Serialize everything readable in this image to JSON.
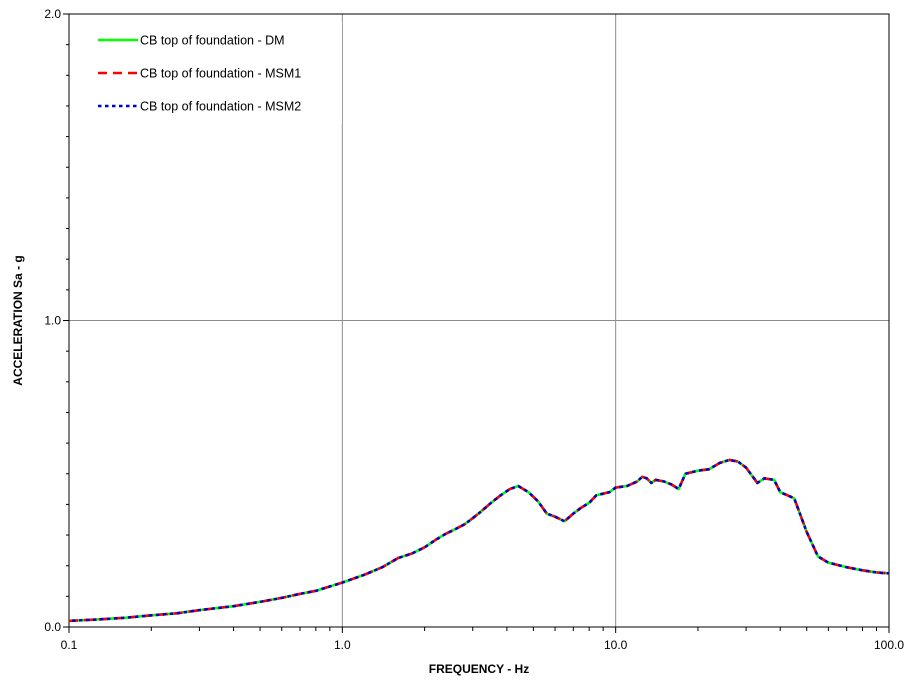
{
  "chart_data": {
    "type": "line",
    "title": "",
    "xlabel": "FREQUENCY - Hz",
    "ylabel": "ACCELERATION Sa - g",
    "xscale": "log",
    "xlim": [
      0.1,
      100.0
    ],
    "ylim": [
      0.0,
      2.0
    ],
    "xticks": [
      "0.1",
      "1.0",
      "10.0",
      "100.0"
    ],
    "yticks": [
      "0.0",
      "1.0",
      "2.0"
    ],
    "grid": true,
    "legend_position": "top-left",
    "series": [
      {
        "name": "CB top of foundation - DM",
        "color": "#00ff00",
        "style": "solid",
        "x": [
          0.1,
          0.13,
          0.16,
          0.2,
          0.25,
          0.3,
          0.4,
          0.5,
          0.6,
          0.7,
          0.8,
          1.0,
          1.2,
          1.4,
          1.6,
          1.8,
          2.0,
          2.2,
          2.4,
          2.6,
          2.8,
          3.0,
          3.2,
          3.5,
          3.8,
          4.1,
          4.4,
          4.8,
          5.2,
          5.6,
          6.0,
          6.5,
          7.0,
          7.5,
          8.0,
          8.5,
          9.0,
          9.5,
          10.0,
          11.0,
          12.0,
          12.5,
          13.0,
          13.5,
          14.0,
          15.0,
          16.0,
          17.0,
          18.0,
          20.0,
          22.0,
          24.0,
          26.0,
          28.0,
          30.0,
          33.0,
          35.0,
          38.0,
          40.0,
          45.0,
          50.0,
          55.0,
          60.0,
          70.0,
          80.0,
          90.0,
          100.0
        ],
        "y": [
          0.02,
          0.025,
          0.03,
          0.038,
          0.045,
          0.055,
          0.068,
          0.082,
          0.095,
          0.108,
          0.118,
          0.145,
          0.17,
          0.195,
          0.225,
          0.24,
          0.26,
          0.285,
          0.305,
          0.32,
          0.335,
          0.355,
          0.375,
          0.405,
          0.43,
          0.45,
          0.46,
          0.44,
          0.41,
          0.37,
          0.36,
          0.345,
          0.37,
          0.39,
          0.405,
          0.43,
          0.435,
          0.44,
          0.455,
          0.46,
          0.475,
          0.49,
          0.485,
          0.47,
          0.48,
          0.475,
          0.465,
          0.45,
          0.5,
          0.51,
          0.515,
          0.535,
          0.545,
          0.54,
          0.52,
          0.47,
          0.485,
          0.48,
          0.44,
          0.42,
          0.31,
          0.23,
          0.21,
          0.195,
          0.185,
          0.178,
          0.175
        ]
      },
      {
        "name": "CB top of foundation - MSM1",
        "color": "#ff0000",
        "style": "dashed",
        "x": [
          0.1,
          0.13,
          0.16,
          0.2,
          0.25,
          0.3,
          0.4,
          0.5,
          0.6,
          0.7,
          0.8,
          1.0,
          1.2,
          1.4,
          1.6,
          1.8,
          2.0,
          2.2,
          2.4,
          2.6,
          2.8,
          3.0,
          3.2,
          3.5,
          3.8,
          4.1,
          4.4,
          4.8,
          5.2,
          5.6,
          6.0,
          6.5,
          7.0,
          7.5,
          8.0,
          8.5,
          9.0,
          9.5,
          10.0,
          11.0,
          12.0,
          12.5,
          13.0,
          13.5,
          14.0,
          15.0,
          16.0,
          17.0,
          18.0,
          20.0,
          22.0,
          24.0,
          26.0,
          28.0,
          30.0,
          33.0,
          35.0,
          38.0,
          40.0,
          45.0,
          50.0,
          55.0,
          60.0,
          70.0,
          80.0,
          90.0,
          100.0
        ],
        "y": [
          0.02,
          0.025,
          0.03,
          0.038,
          0.045,
          0.055,
          0.068,
          0.082,
          0.095,
          0.108,
          0.118,
          0.145,
          0.17,
          0.195,
          0.225,
          0.24,
          0.26,
          0.285,
          0.305,
          0.32,
          0.335,
          0.355,
          0.375,
          0.405,
          0.43,
          0.45,
          0.46,
          0.44,
          0.41,
          0.37,
          0.36,
          0.345,
          0.37,
          0.39,
          0.405,
          0.43,
          0.435,
          0.44,
          0.455,
          0.46,
          0.475,
          0.49,
          0.485,
          0.47,
          0.48,
          0.475,
          0.465,
          0.45,
          0.5,
          0.51,
          0.515,
          0.535,
          0.545,
          0.54,
          0.52,
          0.47,
          0.485,
          0.48,
          0.44,
          0.42,
          0.31,
          0.23,
          0.21,
          0.195,
          0.185,
          0.178,
          0.175
        ]
      },
      {
        "name": "CB top of foundation - MSM2",
        "color": "#0000cc",
        "style": "dotted",
        "x": [
          0.1,
          0.13,
          0.16,
          0.2,
          0.25,
          0.3,
          0.4,
          0.5,
          0.6,
          0.7,
          0.8,
          1.0,
          1.2,
          1.4,
          1.6,
          1.8,
          2.0,
          2.2,
          2.4,
          2.6,
          2.8,
          3.0,
          3.2,
          3.5,
          3.8,
          4.1,
          4.4,
          4.8,
          5.2,
          5.6,
          6.0,
          6.5,
          7.0,
          7.5,
          8.0,
          8.5,
          9.0,
          9.5,
          10.0,
          11.0,
          12.0,
          12.5,
          13.0,
          13.5,
          14.0,
          15.0,
          16.0,
          17.0,
          18.0,
          20.0,
          22.0,
          24.0,
          26.0,
          28.0,
          30.0,
          33.0,
          35.0,
          38.0,
          40.0,
          45.0,
          50.0,
          55.0,
          60.0,
          70.0,
          80.0,
          90.0,
          100.0
        ],
        "y": [
          0.02,
          0.025,
          0.03,
          0.038,
          0.045,
          0.055,
          0.068,
          0.082,
          0.095,
          0.108,
          0.118,
          0.145,
          0.17,
          0.195,
          0.225,
          0.24,
          0.26,
          0.285,
          0.305,
          0.32,
          0.335,
          0.355,
          0.375,
          0.405,
          0.43,
          0.45,
          0.46,
          0.44,
          0.41,
          0.37,
          0.36,
          0.345,
          0.37,
          0.39,
          0.405,
          0.43,
          0.435,
          0.44,
          0.455,
          0.46,
          0.475,
          0.49,
          0.485,
          0.47,
          0.48,
          0.475,
          0.465,
          0.45,
          0.5,
          0.51,
          0.515,
          0.535,
          0.545,
          0.54,
          0.52,
          0.47,
          0.485,
          0.48,
          0.44,
          0.42,
          0.31,
          0.23,
          0.21,
          0.195,
          0.185,
          0.178,
          0.175
        ]
      }
    ]
  }
}
